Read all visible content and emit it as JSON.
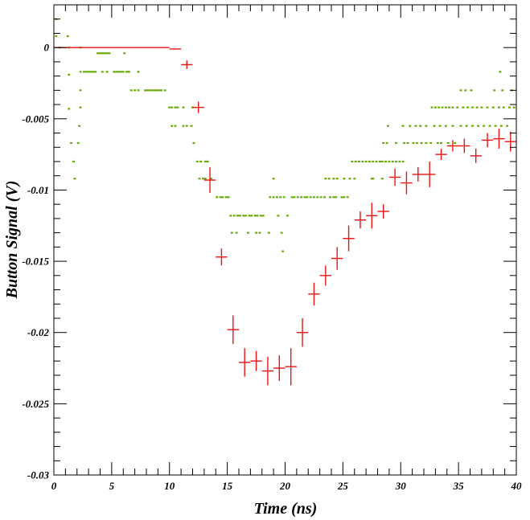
{
  "chart_data": {
    "type": "scatter",
    "title": "",
    "xlabel": "Time (ns)",
    "ylabel": "Button Signal (V)",
    "xlim": [
      0,
      40
    ],
    "ylim": [
      -0.03,
      0.003
    ],
    "x_ticks": [
      0,
      5,
      10,
      15,
      20,
      25,
      30,
      35,
      40
    ],
    "x_tick_labels": [
      "0",
      "5",
      "10",
      "15",
      "20",
      "25",
      "30",
      "35",
      "40"
    ],
    "y_ticks": [
      0,
      -0.005,
      -0.01,
      -0.015,
      -0.02,
      -0.025,
      -0.03
    ],
    "y_tick_labels": [
      "0",
      "-0.005",
      "-0.01",
      "-0.015",
      "-0.02",
      "-0.025",
      "-0.03"
    ],
    "grid": false,
    "legend": "none",
    "colors": {
      "mean": "#ee1111",
      "samples": "#66aa00",
      "axes": "#000000"
    },
    "series": [
      {
        "style": "errorbar-cross",
        "points": [
          {
            "x": 0.5,
            "y": 0,
            "xerr": 0.5,
            "yerr": 0
          },
          {
            "x": 1.5,
            "y": 0,
            "xerr": 0.5,
            "yerr": 0
          },
          {
            "x": 2.5,
            "y": 0,
            "xerr": 0.5,
            "yerr": 0
          },
          {
            "x": 3.5,
            "y": 0,
            "xerr": 0.5,
            "yerr": 0
          },
          {
            "x": 4.5,
            "y": 0,
            "xerr": 0.5,
            "yerr": 0
          },
          {
            "x": 5.5,
            "y": 0,
            "xerr": 0.5,
            "yerr": 0
          },
          {
            "x": 6.5,
            "y": 0,
            "xerr": 0.5,
            "yerr": 0
          },
          {
            "x": 7.5,
            "y": 0,
            "xerr": 0.5,
            "yerr": 0
          },
          {
            "x": 8.5,
            "y": 0,
            "xerr": 0.5,
            "yerr": 0
          },
          {
            "x": 9.5,
            "y": 0,
            "xerr": 0.5,
            "yerr": 0
          },
          {
            "x": 10.5,
            "y": -0.0001,
            "xerr": 0.5,
            "yerr": 0
          },
          {
            "x": 11.5,
            "y": -0.0012,
            "xerr": 0.5,
            "yerr": 0.0003
          },
          {
            "x": 12.5,
            "y": -0.0042,
            "xerr": 0.5,
            "yerr": 0.0004
          },
          {
            "x": 13.5,
            "y": -0.0093,
            "xerr": 0.5,
            "yerr": 0.0009
          },
          {
            "x": 14.5,
            "y": -0.0147,
            "xerr": 0.5,
            "yerr": 0.0006
          },
          {
            "x": 15.5,
            "y": -0.0198,
            "xerr": 0.5,
            "yerr": 0.001
          },
          {
            "x": 16.5,
            "y": -0.0221,
            "xerr": 0.5,
            "yerr": 0.001
          },
          {
            "x": 17.5,
            "y": -0.022,
            "xerr": 0.5,
            "yerr": 0.0007
          },
          {
            "x": 18.5,
            "y": -0.0227,
            "xerr": 0.5,
            "yerr": 0.001
          },
          {
            "x": 19.5,
            "y": -0.0225,
            "xerr": 0.5,
            "yerr": 0.0009
          },
          {
            "x": 20.5,
            "y": -0.0224,
            "xerr": 0.5,
            "yerr": 0.0013
          },
          {
            "x": 21.5,
            "y": -0.02,
            "xerr": 0.5,
            "yerr": 0.001
          },
          {
            "x": 22.5,
            "y": -0.0173,
            "xerr": 0.5,
            "yerr": 0.0008
          },
          {
            "x": 23.5,
            "y": -0.016,
            "xerr": 0.5,
            "yerr": 0.0007
          },
          {
            "x": 24.5,
            "y": -0.0148,
            "xerr": 0.5,
            "yerr": 0.0008
          },
          {
            "x": 25.5,
            "y": -0.0134,
            "xerr": 0.5,
            "yerr": 0.0009
          },
          {
            "x": 26.5,
            "y": -0.0121,
            "xerr": 0.5,
            "yerr": 0.0006
          },
          {
            "x": 27.5,
            "y": -0.0118,
            "xerr": 0.5,
            "yerr": 0.0009
          },
          {
            "x": 28.5,
            "y": -0.0115,
            "xerr": 0.5,
            "yerr": 0.0005
          },
          {
            "x": 29.5,
            "y": -0.0091,
            "xerr": 0.5,
            "yerr": 0.0006
          },
          {
            "x": 30.5,
            "y": -0.0095,
            "xerr": 0.5,
            "yerr": 0.0008
          },
          {
            "x": 31.5,
            "y": -0.0089,
            "xerr": 0.5,
            "yerr": 0.0005
          },
          {
            "x": 32.5,
            "y": -0.0089,
            "xerr": 0.5,
            "yerr": 0.0009
          },
          {
            "x": 33.5,
            "y": -0.0075,
            "xerr": 0.5,
            "yerr": 0.0004
          },
          {
            "x": 34.5,
            "y": -0.0069,
            "xerr": 0.5,
            "yerr": 0.0004
          },
          {
            "x": 35.5,
            "y": -0.0069,
            "xerr": 0.5,
            "yerr": 0.0005
          },
          {
            "x": 36.5,
            "y": -0.0076,
            "xerr": 0.5,
            "yerr": 0.0005
          },
          {
            "x": 37.5,
            "y": -0.0065,
            "xerr": 0.5,
            "yerr": 0.0005
          },
          {
            "x": 38.5,
            "y": -0.0064,
            "xerr": 0.5,
            "yerr": 0.0007
          },
          {
            "x": 39.5,
            "y": -0.0066,
            "xerr": 0.5,
            "yerr": 0.0007
          }
        ]
      },
      {
        "style": "sample-dashes",
        "dash_width": 0.2,
        "points": [
          [
            0.2,
            0.002
          ],
          [
            0.2,
            0.0008
          ],
          [
            1.2,
            0.0008
          ],
          [
            0.5,
            0
          ],
          [
            1.3,
            0
          ],
          [
            2.3,
            0
          ],
          [
            1.3,
            -0.0019
          ],
          [
            1.3,
            -0.0043
          ],
          [
            1.5,
            -0.0067
          ],
          [
            1.7,
            -0.008
          ],
          [
            1.8,
            -0.0092
          ],
          [
            2.1,
            -0.0067
          ],
          [
            2.2,
            -0.0055
          ],
          [
            2.3,
            -0.0042
          ],
          [
            2.3,
            -0.003
          ],
          [
            2.3,
            -0.0017
          ],
          [
            2.6,
            -0.0017
          ],
          [
            2.8,
            -0.0017
          ],
          [
            3.0,
            -0.0017
          ],
          [
            3.2,
            -0.0017
          ],
          [
            3.4,
            -0.0017
          ],
          [
            3.6,
            -0.0017
          ],
          [
            3.8,
            -0.0004
          ],
          [
            4.0,
            -0.0004
          ],
          [
            4.2,
            -0.0004
          ],
          [
            4.4,
            -0.0004
          ],
          [
            4.6,
            -0.0004
          ],
          [
            4.8,
            -0.0004
          ],
          [
            4.2,
            -0.0017
          ],
          [
            4.6,
            -0.0017
          ],
          [
            5.2,
            -0.0017
          ],
          [
            5.4,
            -0.0017
          ],
          [
            5.6,
            -0.0017
          ],
          [
            5.8,
            -0.0017
          ],
          [
            6.0,
            -0.0017
          ],
          [
            6.3,
            -0.0017
          ],
          [
            6.1,
            -0.0004
          ],
          [
            6.7,
            -0.003
          ],
          [
            7.0,
            -0.003
          ],
          [
            7.3,
            -0.003
          ],
          [
            7.9,
            -0.003
          ],
          [
            8.1,
            -0.003
          ],
          [
            8.3,
            -0.003
          ],
          [
            8.5,
            -0.003
          ],
          [
            8.7,
            -0.003
          ],
          [
            8.9,
            -0.003
          ],
          [
            9.1,
            -0.003
          ],
          [
            9.3,
            -0.003
          ],
          [
            6.5,
            -0.0017
          ],
          [
            7.3,
            -0.0017
          ],
          [
            9.6,
            -0.003
          ],
          [
            10.0,
            -0.0042
          ],
          [
            10.2,
            -0.0042
          ],
          [
            10.5,
            -0.0042
          ],
          [
            10.7,
            -0.0042
          ],
          [
            11.2,
            -0.0042
          ],
          [
            12.0,
            -0.0042
          ],
          [
            10.2,
            -0.0055
          ],
          [
            10.5,
            -0.0055
          ],
          [
            11.2,
            -0.0055
          ],
          [
            11.5,
            -0.0055
          ],
          [
            11.9,
            -0.0055
          ],
          [
            12.1,
            -0.0067
          ],
          [
            12.4,
            -0.008
          ],
          [
            12.7,
            -0.008
          ],
          [
            13.1,
            -0.008
          ],
          [
            13.3,
            -0.008
          ],
          [
            12.6,
            -0.0092
          ],
          [
            12.9,
            -0.0092
          ],
          [
            13.1,
            -0.0092
          ],
          [
            13.6,
            -0.0092
          ],
          [
            14.1,
            -0.0105
          ],
          [
            14.4,
            -0.0105
          ],
          [
            14.6,
            -0.0105
          ],
          [
            14.9,
            -0.0105
          ],
          [
            15.1,
            -0.0105
          ],
          [
            15.3,
            -0.0118
          ],
          [
            15.6,
            -0.0118
          ],
          [
            15.9,
            -0.0118
          ],
          [
            16.1,
            -0.0118
          ],
          [
            16.4,
            -0.0118
          ],
          [
            16.6,
            -0.0118
          ],
          [
            16.9,
            -0.0118
          ],
          [
            17.1,
            -0.0118
          ],
          [
            17.4,
            -0.0118
          ],
          [
            17.6,
            -0.0118
          ],
          [
            17.9,
            -0.0118
          ],
          [
            18.1,
            -0.0118
          ],
          [
            15.4,
            -0.013
          ],
          [
            15.8,
            -0.013
          ],
          [
            16.8,
            -0.013
          ],
          [
            17.5,
            -0.013
          ],
          [
            17.8,
            -0.013
          ],
          [
            18.6,
            -0.013
          ],
          [
            19.7,
            -0.013
          ],
          [
            18.7,
            -0.0105
          ],
          [
            19.0,
            -0.0105
          ],
          [
            19.3,
            -0.0105
          ],
          [
            19.6,
            -0.0105
          ],
          [
            19.9,
            -0.0105
          ],
          [
            20.6,
            -0.0105
          ],
          [
            20.8,
            -0.0105
          ],
          [
            21.1,
            -0.0105
          ],
          [
            21.4,
            -0.0105
          ],
          [
            21.7,
            -0.0105
          ],
          [
            21.9,
            -0.0105
          ],
          [
            22.2,
            -0.0105
          ],
          [
            22.5,
            -0.0105
          ],
          [
            22.8,
            -0.0105
          ],
          [
            23.1,
            -0.0105
          ],
          [
            23.4,
            -0.0105
          ],
          [
            23.9,
            -0.0105
          ],
          [
            24.2,
            -0.0105
          ],
          [
            24.4,
            -0.0105
          ],
          [
            24.9,
            -0.0105
          ],
          [
            25.1,
            -0.0105
          ],
          [
            25.4,
            -0.0105
          ],
          [
            19.0,
            -0.0092
          ],
          [
            19.4,
            -0.0118
          ],
          [
            20.2,
            -0.0118
          ],
          [
            19.8,
            -0.0143
          ],
          [
            23.5,
            -0.0092
          ],
          [
            23.8,
            -0.0092
          ],
          [
            24.2,
            -0.0092
          ],
          [
            24.5,
            -0.0092
          ],
          [
            25.1,
            -0.0092
          ],
          [
            25.6,
            -0.0092
          ],
          [
            26.0,
            -0.0092
          ],
          [
            27.5,
            -0.0092
          ],
          [
            25.8,
            -0.008
          ],
          [
            26.1,
            -0.008
          ],
          [
            26.4,
            -0.008
          ],
          [
            26.7,
            -0.008
          ],
          [
            27.0,
            -0.008
          ],
          [
            27.3,
            -0.008
          ],
          [
            27.6,
            -0.008
          ],
          [
            27.9,
            -0.008
          ],
          [
            28.2,
            -0.008
          ],
          [
            28.4,
            -0.008
          ],
          [
            28.7,
            -0.008
          ],
          [
            29.0,
            -0.008
          ],
          [
            29.3,
            -0.008
          ],
          [
            29.6,
            -0.008
          ],
          [
            29.9,
            -0.008
          ],
          [
            30.2,
            -0.008
          ],
          [
            27.6,
            -0.0092
          ],
          [
            28.4,
            -0.0092
          ],
          [
            28.5,
            -0.0067
          ],
          [
            28.8,
            -0.0067
          ],
          [
            29.6,
            -0.0067
          ],
          [
            30.3,
            -0.0067
          ],
          [
            30.6,
            -0.0067
          ],
          [
            31.1,
            -0.0067
          ],
          [
            31.4,
            -0.0067
          ],
          [
            31.8,
            -0.0067
          ],
          [
            32.2,
            -0.0067
          ],
          [
            32.6,
            -0.0067
          ],
          [
            33.2,
            -0.0067
          ],
          [
            33.5,
            -0.0067
          ],
          [
            34.1,
            -0.0067
          ],
          [
            34.7,
            -0.0067
          ],
          [
            28.9,
            -0.0055
          ],
          [
            30.2,
            -0.0055
          ],
          [
            30.8,
            -0.0055
          ],
          [
            31.3,
            -0.0055
          ],
          [
            31.7,
            -0.0055
          ],
          [
            32.2,
            -0.0055
          ],
          [
            32.9,
            -0.0055
          ],
          [
            33.4,
            -0.0055
          ],
          [
            33.9,
            -0.0055
          ],
          [
            34.5,
            -0.0055
          ],
          [
            35.2,
            -0.0055
          ],
          [
            35.7,
            -0.0055
          ],
          [
            36.2,
            -0.0055
          ],
          [
            36.7,
            -0.0055
          ],
          [
            37.2,
            -0.0055
          ],
          [
            37.7,
            -0.0055
          ],
          [
            38.2,
            -0.0055
          ],
          [
            38.7,
            -0.0055
          ],
          [
            39.2,
            -0.0055
          ],
          [
            32.7,
            -0.0042
          ],
          [
            33.0,
            -0.0042
          ],
          [
            33.3,
            -0.0042
          ],
          [
            33.6,
            -0.0042
          ],
          [
            33.9,
            -0.0042
          ],
          [
            34.2,
            -0.0042
          ],
          [
            34.5,
            -0.0042
          ],
          [
            34.9,
            -0.0042
          ],
          [
            35.4,
            -0.0042
          ],
          [
            35.8,
            -0.0042
          ],
          [
            36.2,
            -0.0042
          ],
          [
            36.6,
            -0.0042
          ],
          [
            37.0,
            -0.0042
          ],
          [
            37.5,
            -0.0042
          ],
          [
            38.0,
            -0.0042
          ],
          [
            38.5,
            -0.0042
          ],
          [
            38.9,
            -0.0042
          ],
          [
            39.4,
            -0.0042
          ],
          [
            39.8,
            -0.0042
          ],
          [
            35.2,
            -0.003
          ],
          [
            36.1,
            -0.003
          ],
          [
            38.1,
            -0.003
          ],
          [
            38.8,
            -0.003
          ],
          [
            39.6,
            -0.003
          ],
          [
            38.6,
            -0.0017
          ],
          [
            35.6,
            -0.003
          ]
        ]
      }
    ]
  }
}
